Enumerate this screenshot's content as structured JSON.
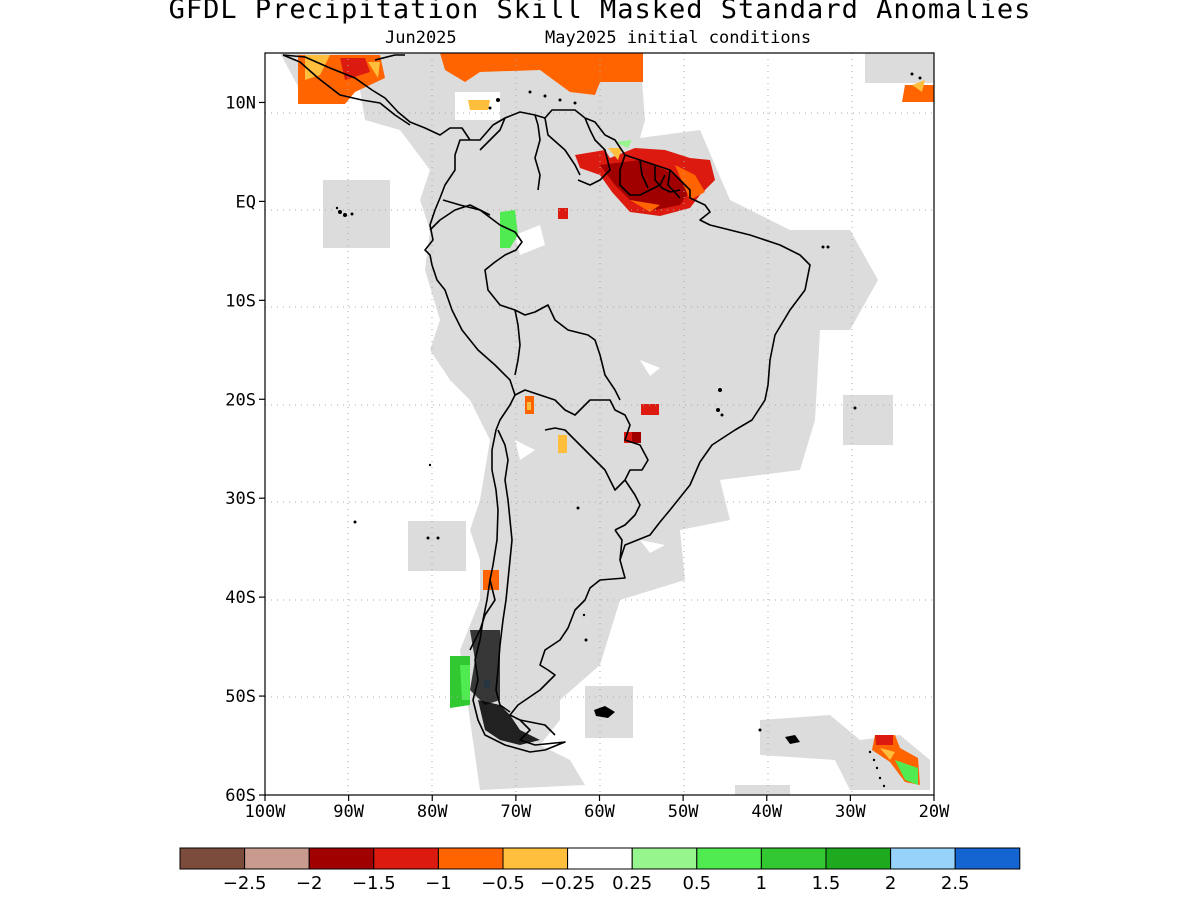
{
  "title": "GFDL Precipitation Skill Masked Standard Anomalies",
  "subtitle": {
    "target_month": "Jun2025",
    "init": "May2025 initial conditions"
  },
  "map": {
    "region": "South America",
    "lon_range": [
      -100,
      -20
    ],
    "lat_range": [
      -60,
      15
    ],
    "grid_lines": "dotted",
    "x_ticks": [
      "100W",
      "90W",
      "80W",
      "70W",
      "60W",
      "50W",
      "40W",
      "30W",
      "20W"
    ],
    "y_ticks": [
      "10N",
      "EQ",
      "10S",
      "20S",
      "30S",
      "40S",
      "50S",
      "60S"
    ],
    "mask_color": "#dcdcdc"
  },
  "colorbar": {
    "colors": [
      "#7b4b3c",
      "#c99a8e",
      "#a00000",
      "#dd1a10",
      "#ff6400",
      "#ffbe3c",
      "#ffffff",
      "#96f58c",
      "#50eb50",
      "#32c832",
      "#1eaa1e",
      "#96d2fa",
      "#1464d2"
    ],
    "labels": [
      "−2.5",
      "−2",
      "−1.5",
      "−1",
      "−0.5",
      "−0.25",
      "0.25",
      "0.5",
      "1",
      "1.5",
      "2",
      "2.5"
    ]
  }
}
